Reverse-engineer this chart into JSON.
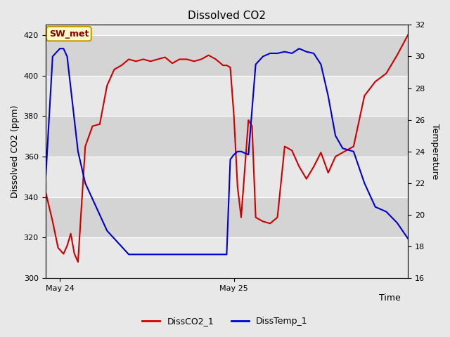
{
  "title": "Dissolved CO2",
  "ylabel_left": "Dissolved CO2 (ppm)",
  "ylabel_right": "Temperature",
  "xlabel": "Time",
  "ylim_left": [
    300,
    425
  ],
  "ylim_right": [
    16,
    32
  ],
  "yticks_left": [
    300,
    320,
    340,
    360,
    380,
    400,
    420
  ],
  "yticks_right": [
    16,
    18,
    20,
    22,
    24,
    26,
    28,
    30,
    32
  ],
  "fig_bg_color": "#e8e8e8",
  "plot_bg_color": "#d8d8d8",
  "legend_label_co2": "DissCO2_1",
  "legend_label_temp": "DissTemp_1",
  "annotation_text": "SW_met",
  "annotation_bg": "#ffffcc",
  "annotation_border": "#cc9900",
  "co2_color": "#cc0000",
  "temp_color": "#0000cc",
  "linewidth": 1.5,
  "x_tick_labels": [
    "May 24",
    "May 25"
  ],
  "x_tick_positions": [
    0.04,
    0.52
  ],
  "co2_x": [
    0.0,
    0.02,
    0.035,
    0.05,
    0.06,
    0.07,
    0.08,
    0.09,
    0.11,
    0.13,
    0.15,
    0.17,
    0.19,
    0.21,
    0.23,
    0.25,
    0.27,
    0.29,
    0.31,
    0.33,
    0.35,
    0.37,
    0.39,
    0.41,
    0.43,
    0.45,
    0.47,
    0.49,
    0.5,
    0.51,
    0.52,
    0.53,
    0.54,
    0.56,
    0.57,
    0.58,
    0.6,
    0.62,
    0.64,
    0.66,
    0.68,
    0.7,
    0.72,
    0.74,
    0.76,
    0.78,
    0.8,
    0.82,
    0.85,
    0.88,
    0.91,
    0.94,
    0.97,
    1.0
  ],
  "co2_y": [
    343,
    328,
    315,
    312,
    316,
    322,
    312,
    308,
    365,
    375,
    376,
    395,
    403,
    405,
    408,
    407,
    408,
    407,
    408,
    409,
    406,
    408,
    408,
    407,
    408,
    410,
    408,
    405,
    405,
    404,
    380,
    345,
    330,
    378,
    375,
    330,
    328,
    327,
    330,
    365,
    363,
    355,
    349,
    355,
    362,
    352,
    360,
    362,
    365,
    390,
    397,
    401,
    410,
    420
  ],
  "temp_x": [
    0.0,
    0.02,
    0.04,
    0.05,
    0.06,
    0.07,
    0.09,
    0.11,
    0.13,
    0.15,
    0.17,
    0.19,
    0.21,
    0.23,
    0.25,
    0.27,
    0.29,
    0.31,
    0.33,
    0.35,
    0.37,
    0.39,
    0.41,
    0.43,
    0.45,
    0.47,
    0.49,
    0.5,
    0.51,
    0.52,
    0.53,
    0.54,
    0.56,
    0.58,
    0.6,
    0.62,
    0.64,
    0.66,
    0.68,
    0.7,
    0.72,
    0.74,
    0.76,
    0.78,
    0.8,
    0.82,
    0.85,
    0.88,
    0.91,
    0.94,
    0.97,
    1.0
  ],
  "temp_y": [
    22,
    30,
    30.5,
    30.5,
    30,
    28,
    24,
    22,
    21,
    20,
    19,
    18.5,
    18,
    17.5,
    17.5,
    17.5,
    17.5,
    17.5,
    17.5,
    17.5,
    17.5,
    17.5,
    17.5,
    17.5,
    17.5,
    17.5,
    17.5,
    17.5,
    23.5,
    23.8,
    24,
    24,
    23.8,
    29.5,
    30,
    30.2,
    30.2,
    30.3,
    30.2,
    30.5,
    30.3,
    30.2,
    29.5,
    27.5,
    25,
    24.2,
    24,
    22,
    20.5,
    20.2,
    19.5,
    18.5
  ],
  "band_colors": [
    "#e8e8e8",
    "#d4d4d4"
  ],
  "band_edges": [
    300,
    320,
    340,
    360,
    380,
    400,
    420,
    425
  ]
}
